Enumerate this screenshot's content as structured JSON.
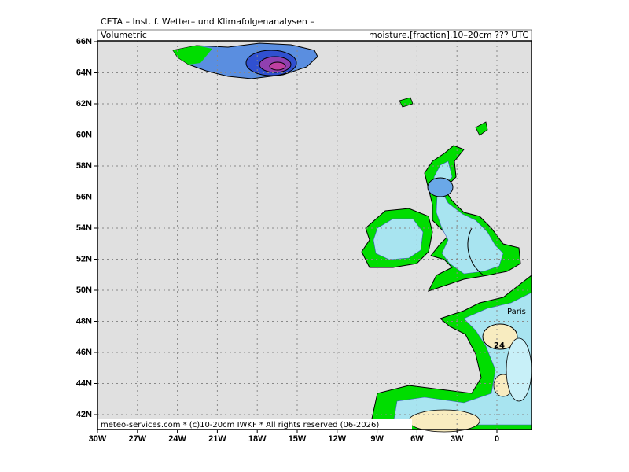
{
  "header": {
    "institute": "CETA – Inst. f. Wetter– und Klimafolgenanalysen –",
    "left": "Volumetric",
    "right": "moisture.[fraction].10–20cm ??? UTC"
  },
  "footer": "meteo-services.com * (c)10-20cm IWKF * All rights reserved (06-2026)",
  "map": {
    "lat_ticks": [
      "66N",
      "64N",
      "62N",
      "60N",
      "58N",
      "56N",
      "54N",
      "52N",
      "50N",
      "48N",
      "46N",
      "44N",
      "42N"
    ],
    "lon_ticks": [
      "30W",
      "27W",
      "24W",
      "21W",
      "18W",
      "15W",
      "12W",
      "9W",
      "6W",
      "3W",
      "0"
    ],
    "labels": {
      "city": "Paris",
      "contour": "24"
    }
  }
}
